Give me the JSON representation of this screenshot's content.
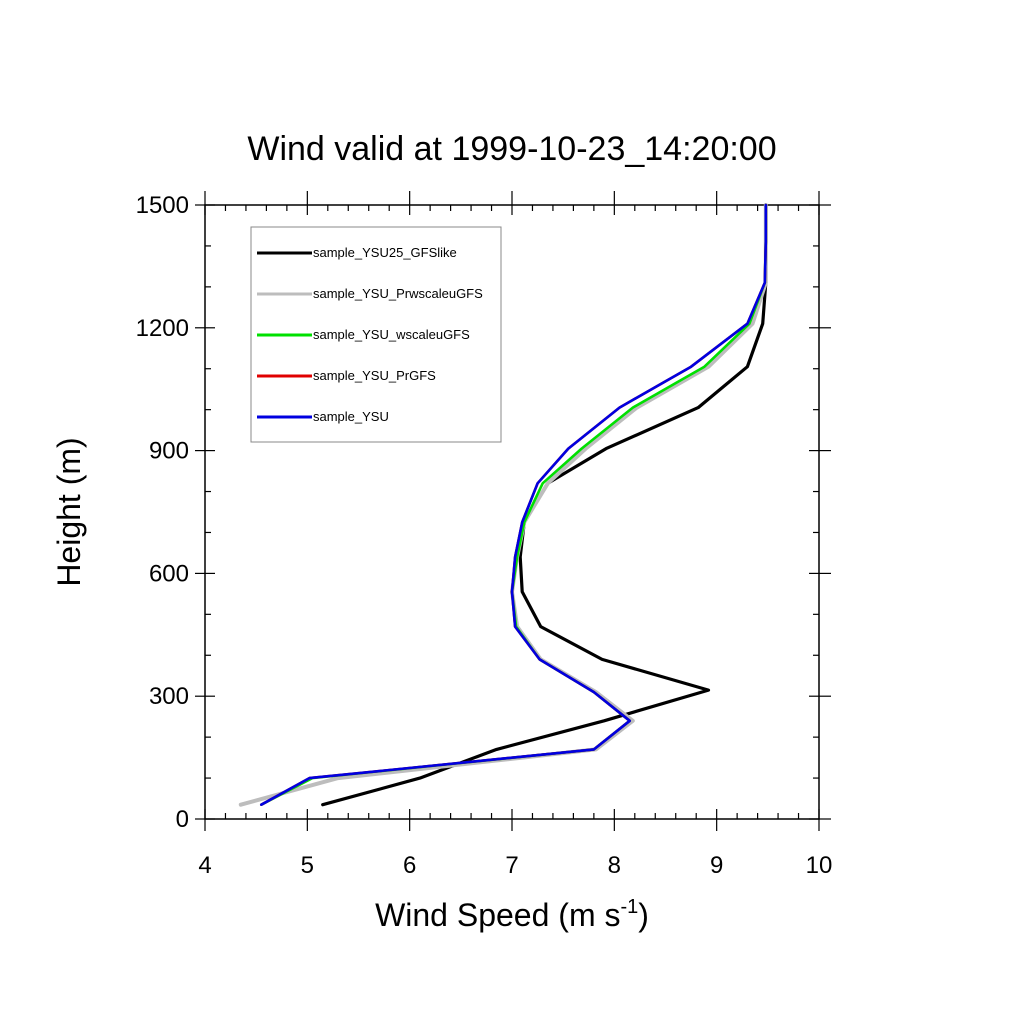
{
  "chart_data": {
    "type": "line",
    "title": "Wind valid at 1999-10-23_14:20:00",
    "xlabel": "Wind Speed (m s",
    "xlabel_sup": "-1",
    "xlabel_close": ")",
    "ylabel": "Height (m)",
    "xlim": [
      4,
      10
    ],
    "ylim": [
      0,
      1500
    ],
    "xticks": [
      4,
      5,
      6,
      7,
      8,
      9,
      10
    ],
    "yticks": [
      0,
      300,
      600,
      900,
      1200,
      1500
    ],
    "grid": false,
    "legend_position": "top-left",
    "series": [
      {
        "name": "sample_YSU25_GFSlike",
        "color": "#000000",
        "x": [
          5.15,
          6.1,
          6.85,
          7.9,
          8.92,
          7.88,
          7.28,
          7.1,
          7.08,
          7.12,
          7.35,
          7.92,
          8.82,
          9.3,
          9.45,
          9.48,
          9.48,
          9.48
        ],
        "y": [
          35,
          100,
          170,
          240,
          315,
          390,
          470,
          555,
          640,
          725,
          820,
          905,
          1005,
          1105,
          1210,
          1310,
          1410,
          1500
        ]
      },
      {
        "name": "sample_YSU_PrwscaleuGFS",
        "color": "#bdbdbd",
        "x": [
          4.35,
          5.3,
          7.82,
          8.18,
          7.82,
          7.28,
          7.05,
          7.0,
          7.05,
          7.12,
          7.35,
          7.72,
          8.22,
          8.92,
          9.35,
          9.48,
          9.48,
          9.48
        ],
        "y": [
          35,
          100,
          170,
          240,
          310,
          390,
          470,
          555,
          640,
          725,
          820,
          905,
          1005,
          1105,
          1210,
          1310,
          1410,
          1500
        ]
      },
      {
        "name": "sample_YSU_wscaleuGFS",
        "color": "#00e000",
        "x": [
          4.55,
          5.05,
          7.8,
          8.15,
          7.8,
          7.27,
          7.04,
          7.0,
          7.05,
          7.12,
          7.3,
          7.68,
          8.18,
          8.88,
          9.32,
          9.47,
          9.48,
          9.48
        ],
        "y": [
          35,
          100,
          170,
          240,
          310,
          390,
          470,
          555,
          640,
          725,
          820,
          905,
          1005,
          1105,
          1210,
          1310,
          1410,
          1500
        ]
      },
      {
        "name": "sample_YSU_PrGFS",
        "color": "#e00000",
        "x": [
          4.55,
          5.02,
          7.8,
          8.15,
          7.8,
          7.27,
          7.03,
          7.0,
          7.03,
          7.1,
          7.25,
          7.55,
          8.05,
          8.75,
          9.3,
          9.47,
          9.48,
          9.48
        ],
        "y": [
          35,
          100,
          170,
          240,
          310,
          390,
          470,
          555,
          640,
          725,
          820,
          905,
          1005,
          1105,
          1210,
          1310,
          1410,
          1500
        ]
      },
      {
        "name": "sample_YSU",
        "color": "#0000e0",
        "x": [
          4.55,
          5.02,
          7.8,
          8.15,
          7.8,
          7.27,
          7.03,
          7.0,
          7.03,
          7.1,
          7.25,
          7.55,
          8.05,
          8.75,
          9.3,
          9.47,
          9.48,
          9.48
        ],
        "y": [
          35,
          100,
          170,
          240,
          310,
          390,
          470,
          555,
          640,
          725,
          820,
          905,
          1005,
          1105,
          1210,
          1310,
          1410,
          1500
        ]
      }
    ]
  }
}
